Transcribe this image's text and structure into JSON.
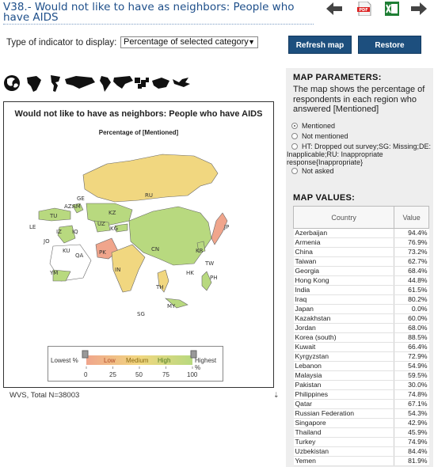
{
  "header": {
    "title": "V38.- Would not like to have as neighbors: People who have AIDS",
    "tools": [
      "back-arrow-icon",
      "pdf-icon",
      "excel-icon",
      "forward-arrow-icon"
    ],
    "pdf_text": "PDF"
  },
  "controls": {
    "indicator_label": "Type of indicator to display:",
    "indicator_value": "Percentage of selected category",
    "refresh_label": "Refresh map",
    "restore_label": "Restore defaults"
  },
  "region_icons": [
    "world-icon",
    "africa-icon",
    "americas-icon",
    "asia-icon",
    "latin-america-icon",
    "north-america-icon",
    "europe-icon",
    "middle-east-icon",
    "oceania-icon"
  ],
  "map": {
    "title": "Would not like to have as neighbors: People who have AIDS",
    "subtitle": "Percentage of [Mentioned]",
    "labels": [
      "RU",
      "GE",
      "AZ",
      "AM",
      "KZ",
      "TU",
      "UZ",
      "KG",
      "LE",
      "IZ",
      "IQ",
      "JO",
      "KU",
      "QA",
      "CN",
      "JP",
      "KR",
      "TW",
      "PK",
      "IN",
      "HK",
      "PH",
      "TH",
      "MY",
      "SG",
      "YM"
    ],
    "legend": {
      "lowest": "Lowest %",
      "highest": "Highest %",
      "low": "Low",
      "medium": "Medium",
      "high": "High",
      "ticks": [
        "0",
        "25",
        "50",
        "75",
        "100"
      ]
    },
    "colors": {
      "low": "#f0a58c",
      "medium": "#f1d780",
      "high": "#b8d97f",
      "no_data": "#ffffff"
    }
  },
  "footer": {
    "source": "WVS, Total N=38003"
  },
  "params": {
    "heading": "MAP PARAMETERS:",
    "description": "The map shows the percentage of respondents in each region who answered [Mentioned]",
    "options": [
      {
        "label": "Mentioned",
        "selected": true
      },
      {
        "label": "Not mentioned",
        "selected": false
      },
      {
        "label": "HT: Dropped out survey;SG: Missing;DE: Inapplicable;RU: Inappropriate response{Inappropriate}",
        "selected": false
      },
      {
        "label": "Not asked",
        "selected": false
      }
    ]
  },
  "values": {
    "heading": "MAP VALUES:",
    "col_country": "Country",
    "col_value": "Value",
    "rows": [
      {
        "country": "Azerbaijan",
        "value": "94.4%"
      },
      {
        "country": "Armenia",
        "value": "76.9%"
      },
      {
        "country": "China",
        "value": "73.2%"
      },
      {
        "country": "Taiwan",
        "value": "62.7%"
      },
      {
        "country": "Georgia",
        "value": "68.4%"
      },
      {
        "country": "Hong Kong",
        "value": "44.8%"
      },
      {
        "country": "India",
        "value": "61.5%"
      },
      {
        "country": "Iraq",
        "value": "80.2%"
      },
      {
        "country": "Japan",
        "value": "0.0%"
      },
      {
        "country": "Kazakhstan",
        "value": "60.0%"
      },
      {
        "country": "Jordan",
        "value": "68.0%"
      },
      {
        "country": "Korea (south)",
        "value": "88.5%"
      },
      {
        "country": "Kuwait",
        "value": "66.4%"
      },
      {
        "country": "Kyrgyzstan",
        "value": "72.9%"
      },
      {
        "country": "Lebanon",
        "value": "54.9%"
      },
      {
        "country": "Malaysia",
        "value": "59.5%"
      },
      {
        "country": "Pakistan",
        "value": "30.0%"
      },
      {
        "country": "Philippines",
        "value": "74.8%"
      },
      {
        "country": "Qatar",
        "value": "67.1%"
      },
      {
        "country": "Russian Federation",
        "value": "54.3%"
      },
      {
        "country": "Singapore",
        "value": "42.9%"
      },
      {
        "country": "Thailand",
        "value": "45.9%"
      },
      {
        "country": "Turkey",
        "value": "74.9%"
      },
      {
        "country": "Uzbekistan",
        "value": "84.4%"
      },
      {
        "country": "Yemen",
        "value": "81.9%"
      }
    ]
  }
}
